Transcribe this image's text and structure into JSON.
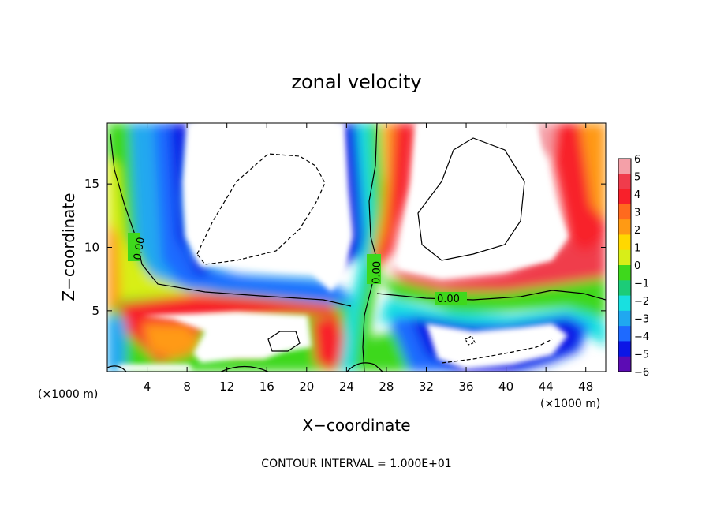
{
  "chart_data": {
    "type": "heatmap",
    "title": "zonal velocity",
    "xlabel": "X−coordinate",
    "ylabel": "Z−coordinate",
    "x_unit_left": "(×1000 m)",
    "x_unit_right": "(×1000 m)",
    "xlim": [
      0,
      50
    ],
    "ylim": [
      0.2,
      19.8
    ],
    "x_ticks": [
      "4",
      "8",
      "12",
      "16",
      "20",
      "24",
      "28",
      "32",
      "36",
      "40",
      "44",
      "48"
    ],
    "x_tick_values": [
      4,
      8,
      12,
      16,
      20,
      24,
      28,
      32,
      36,
      40,
      44,
      48
    ],
    "y_ticks": [
      "5",
      "10",
      "15"
    ],
    "y_tick_values": [
      5,
      10,
      15
    ],
    "colorbar": {
      "min": -6,
      "max": 6,
      "labels": [
        "6",
        "5",
        "4",
        "3",
        "2",
        "1",
        "0",
        "−1",
        "−2",
        "−3",
        "−4",
        "−5",
        "−6"
      ],
      "colors": [
        "#f4a0a8",
        "#f03c4c",
        "#f8202a",
        "#ff6a1e",
        "#ff9a14",
        "#ffd800",
        "#d8ee18",
        "#3ed81c",
        "#1ccc78",
        "#18e0e0",
        "#20a8f0",
        "#1e6aff",
        "#0c16e6",
        "#5c0cb4"
      ]
    },
    "contour_labels": [
      "0.00",
      "0.00",
      "0.00"
    ],
    "footnote": "CONTOUR INTERVAL = 1.000E+01"
  }
}
